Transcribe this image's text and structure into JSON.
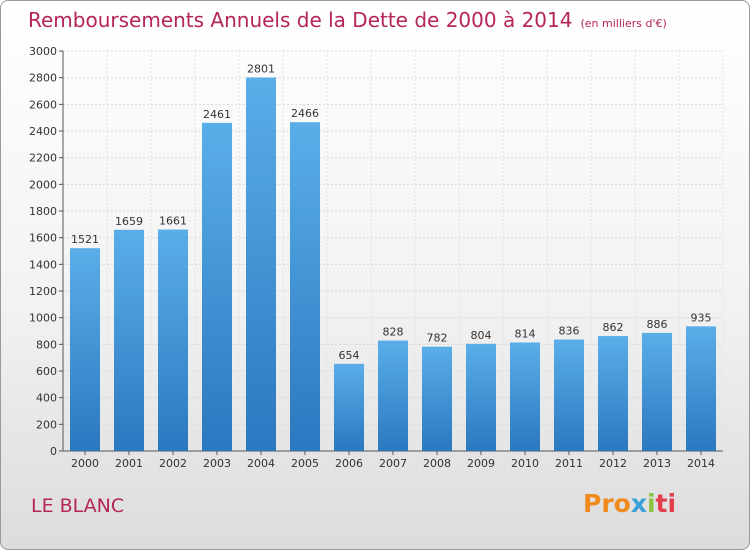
{
  "title": "Remboursements Annuels de la Dette de 2000 à 2014",
  "subtitle": "(en milliers d'€)",
  "city": "LE BLANC",
  "logo": {
    "parts": [
      "Pro",
      "x",
      "i",
      "ti"
    ],
    "colors": [
      "#f08a1c",
      "#3aa0d8",
      "#8cc63f",
      "#e43d4b"
    ]
  },
  "colors": {
    "title": "#b5245a",
    "bar_top": "#5aaee8",
    "bar_bottom": "#2a78c0"
  },
  "chart_data": {
    "type": "bar",
    "categories": [
      "2000",
      "2001",
      "2002",
      "2003",
      "2004",
      "2005",
      "2006",
      "2007",
      "2008",
      "2009",
      "2010",
      "2011",
      "2012",
      "2013",
      "2014"
    ],
    "values": [
      1521,
      1659,
      1661,
      2461,
      2801,
      2466,
      654,
      828,
      782,
      804,
      814,
      836,
      862,
      886,
      935
    ],
    "ylim": [
      0,
      3000
    ],
    "yticks": [
      0,
      200,
      400,
      600,
      800,
      1000,
      1200,
      1400,
      1600,
      1800,
      2000,
      2200,
      2400,
      2600,
      2800,
      3000
    ],
    "grid": true,
    "data_labels": true
  }
}
